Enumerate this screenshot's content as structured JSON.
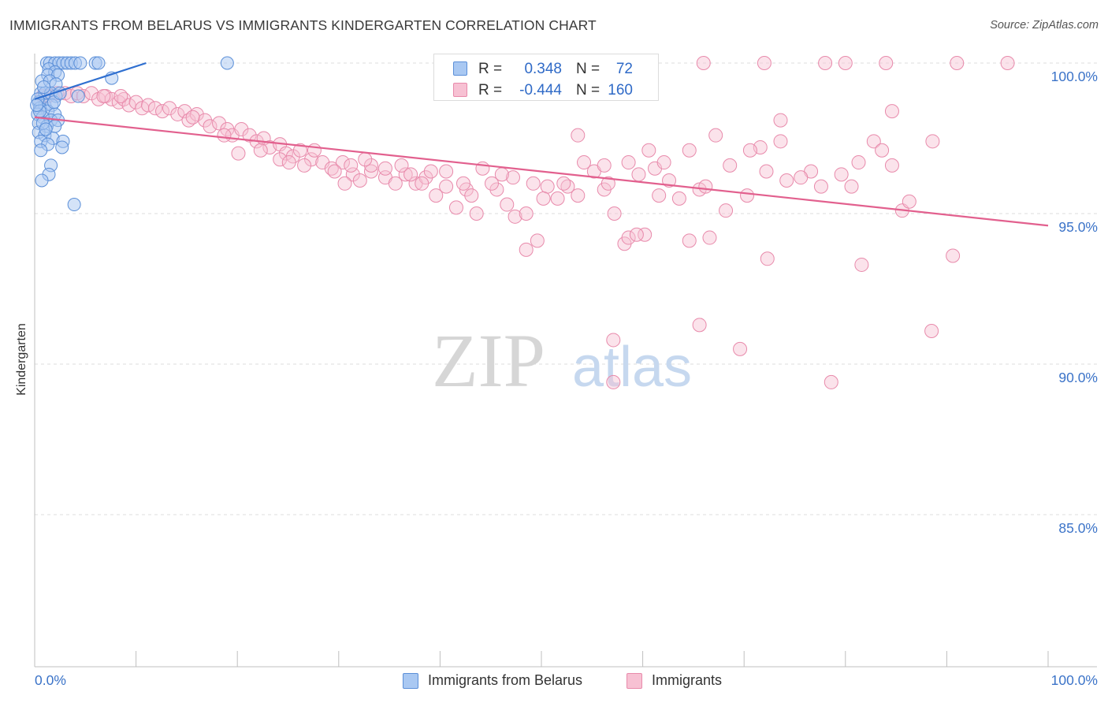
{
  "title": "IMMIGRANTS FROM BELARUS VS IMMIGRANTS KINDERGARTEN CORRELATION CHART",
  "source": "Source: ZipAtlas.com",
  "watermark": {
    "part1": "ZIP",
    "part2": "atlas"
  },
  "legend": {
    "rows": [
      {
        "r_label": "R =",
        "r_value": "0.348",
        "n_label": "N =",
        "n_value": "72"
      },
      {
        "r_label": "R =",
        "r_value": "-0.444",
        "n_label": "N =",
        "n_value": "160"
      }
    ]
  },
  "bottom_legend": [
    "Immigrants from Belarus",
    "Immigrants"
  ],
  "colors": {
    "belarus_fill": "#a9c8f2",
    "belarus_stroke": "#5b8fd8",
    "belarus_line": "#2f6fd0",
    "immigrants_fill": "#f7c1d3",
    "immigrants_stroke": "#e88aab",
    "immigrants_line": "#e2608e",
    "tick_label": "#3b73c8",
    "grid": "#dcdcdc"
  },
  "chart_data": {
    "type": "scatter",
    "title": "IMMIGRANTS FROM BELARUS VS IMMIGRANTS KINDERGARTEN CORRELATION CHART",
    "xlabel": "",
    "ylabel": "Kindergarten",
    "xlim": [
      0,
      100
    ],
    "ylim": [
      80,
      100.5
    ],
    "x_tick_labels": [
      "0.0%",
      "100.0%"
    ],
    "y_ticks": [
      85,
      90,
      95,
      100
    ],
    "y_tick_labels": [
      "85.0%",
      "90.0%",
      "95.0%",
      "100.0%"
    ],
    "grid": "horizontal dashed",
    "series": [
      {
        "name": "Immigrants from Belarus",
        "r": 0.348,
        "n": 72,
        "trend": {
          "x": [
            0,
            11
          ],
          "y": [
            98.8,
            100.0
          ]
        },
        "points": [
          [
            1.2,
            100
          ],
          [
            1.5,
            100
          ],
          [
            2,
            100
          ],
          [
            2.4,
            100
          ],
          [
            2.8,
            100
          ],
          [
            3.2,
            100
          ],
          [
            3.6,
            100
          ],
          [
            4,
            100
          ],
          [
            4.5,
            100
          ],
          [
            6,
            100
          ],
          [
            6.3,
            100
          ],
          [
            19,
            100
          ],
          [
            1.4,
            99.8
          ],
          [
            2,
            99.7
          ],
          [
            1.3,
            99.6
          ],
          [
            2.3,
            99.6
          ],
          [
            7.6,
            99.5
          ],
          [
            0.7,
            99.4
          ],
          [
            1.5,
            99.4
          ],
          [
            2.1,
            99.3
          ],
          [
            0.6,
            99.0
          ],
          [
            1.0,
            99.0
          ],
          [
            1.6,
            99.0
          ],
          [
            2.1,
            98.9
          ],
          [
            4.3,
            98.9
          ],
          [
            0.4,
            98.7
          ],
          [
            1.0,
            98.6
          ],
          [
            1.7,
            98.6
          ],
          [
            0.5,
            98.5
          ],
          [
            1.3,
            98.4
          ],
          [
            2.0,
            98.3
          ],
          [
            0.3,
            98.3
          ],
          [
            0.8,
            98.2
          ],
          [
            1.6,
            98.1
          ],
          [
            2.3,
            98.1
          ],
          [
            0.4,
            98.0
          ],
          [
            1.2,
            97.9
          ],
          [
            2.0,
            97.9
          ],
          [
            0.4,
            97.7
          ],
          [
            1.0,
            97.6
          ],
          [
            1.8,
            97.5
          ],
          [
            0.6,
            97.4
          ],
          [
            2.8,
            97.4
          ],
          [
            1.3,
            97.3
          ],
          [
            2.7,
            97.2
          ],
          [
            0.6,
            97.1
          ],
          [
            1.6,
            96.6
          ],
          [
            1.4,
            96.3
          ],
          [
            0.7,
            96.1
          ],
          [
            3.9,
            95.3
          ],
          [
            0.3,
            98.8
          ],
          [
            0.5,
            98.4
          ],
          [
            0.8,
            98.0
          ],
          [
            1.1,
            97.8
          ],
          [
            0.2,
            98.6
          ],
          [
            0.9,
            99.2
          ],
          [
            1.9,
            98.7
          ],
          [
            2.5,
            99.0
          ]
        ]
      },
      {
        "name": "Immigrants",
        "r": -0.444,
        "n": 160,
        "trend": {
          "x": [
            0,
            100
          ],
          "y": [
            98.2,
            94.6
          ]
        },
        "points": [
          [
            66,
            100
          ],
          [
            72,
            100
          ],
          [
            78,
            100
          ],
          [
            80,
            100
          ],
          [
            84,
            100
          ],
          [
            91,
            100
          ],
          [
            96,
            100
          ],
          [
            0.8,
            98.9
          ],
          [
            1.3,
            98.9
          ],
          [
            2.2,
            99.0
          ],
          [
            3,
            99.0
          ],
          [
            3.6,
            98.9
          ],
          [
            4.2,
            99.0
          ],
          [
            4.8,
            98.9
          ],
          [
            5.6,
            99.0
          ],
          [
            6.3,
            98.8
          ],
          [
            7,
            98.9
          ],
          [
            7.6,
            98.8
          ],
          [
            8.3,
            98.7
          ],
          [
            8.8,
            98.8
          ],
          [
            9.3,
            98.6
          ],
          [
            10,
            98.7
          ],
          [
            10.6,
            98.5
          ],
          [
            11.2,
            98.6
          ],
          [
            11.9,
            98.5
          ],
          [
            12.6,
            98.4
          ],
          [
            13.3,
            98.5
          ],
          [
            14.1,
            98.3
          ],
          [
            14.8,
            98.4
          ],
          [
            15.2,
            98.1
          ],
          [
            16,
            98.3
          ],
          [
            16.8,
            98.1
          ],
          [
            17.3,
            97.9
          ],
          [
            18.2,
            98.0
          ],
          [
            19,
            97.8
          ],
          [
            19.5,
            97.6
          ],
          [
            20.4,
            97.8
          ],
          [
            21.2,
            97.6
          ],
          [
            21.9,
            97.4
          ],
          [
            22.6,
            97.5
          ],
          [
            23.2,
            97.2
          ],
          [
            24.2,
            97.3
          ],
          [
            24.8,
            97.0
          ],
          [
            25.5,
            96.9
          ],
          [
            26.2,
            97.1
          ],
          [
            27.3,
            96.8
          ],
          [
            28.4,
            96.7
          ],
          [
            29.3,
            96.5
          ],
          [
            30.4,
            96.7
          ],
          [
            31.4,
            96.3
          ],
          [
            32.1,
            96.1
          ],
          [
            33.2,
            96.4
          ],
          [
            34.6,
            96.2
          ],
          [
            35.6,
            96.0
          ],
          [
            36.6,
            96.3
          ],
          [
            37.6,
            96.0
          ],
          [
            38.6,
            96.2
          ],
          [
            39.6,
            95.6
          ],
          [
            40.6,
            95.9
          ],
          [
            41.6,
            95.2
          ],
          [
            42.6,
            95.8
          ],
          [
            43.6,
            95.0
          ],
          [
            45.6,
            95.8
          ],
          [
            46.6,
            95.3
          ],
          [
            47.4,
            94.9
          ],
          [
            48.5,
            95.0
          ],
          [
            49.6,
            94.1
          ],
          [
            50.6,
            95.9
          ],
          [
            51.6,
            95.5
          ],
          [
            52.6,
            95.9
          ],
          [
            53.6,
            95.6
          ],
          [
            55.2,
            96.4
          ],
          [
            56.2,
            95.8
          ],
          [
            57.2,
            95.0
          ],
          [
            58.2,
            94.0
          ],
          [
            58.6,
            96.7
          ],
          [
            59.6,
            96.3
          ],
          [
            60.2,
            94.3
          ],
          [
            61.6,
            95.6
          ],
          [
            62.6,
            96.1
          ],
          [
            64.6,
            97.1
          ],
          [
            65.6,
            95.8
          ],
          [
            67.2,
            97.6
          ],
          [
            68.6,
            96.6
          ],
          [
            70.3,
            95.6
          ],
          [
            71.6,
            97.2
          ],
          [
            72.2,
            96.4
          ],
          [
            73.6,
            97.4
          ],
          [
            76.6,
            96.4
          ],
          [
            77.6,
            95.9
          ],
          [
            79.6,
            96.3
          ],
          [
            80.6,
            95.9
          ],
          [
            81.3,
            96.7
          ],
          [
            82.8,
            97.4
          ],
          [
            83.6,
            97.1
          ],
          [
            84.6,
            96.6
          ],
          [
            85.6,
            95.1
          ],
          [
            86.3,
            95.4
          ],
          [
            48.5,
            93.8
          ],
          [
            58.6,
            94.2
          ],
          [
            59.4,
            94.3
          ],
          [
            64.6,
            94.1
          ],
          [
            66.6,
            94.2
          ],
          [
            72.3,
            93.5
          ],
          [
            81.6,
            93.3
          ],
          [
            84.6,
            98.4
          ],
          [
            88.6,
            97.4
          ],
          [
            73.6,
            98.1
          ],
          [
            53.6,
            97.6
          ],
          [
            60.6,
            97.1
          ],
          [
            70.6,
            97.1
          ],
          [
            90.6,
            93.6
          ],
          [
            57.1,
            90.8
          ],
          [
            57.1,
            89.4
          ],
          [
            65.6,
            91.3
          ],
          [
            69.6,
            90.5
          ],
          [
            78.6,
            89.4
          ],
          [
            88.5,
            91.1
          ],
          [
            24.2,
            96.8
          ],
          [
            33.2,
            96.6
          ],
          [
            36.2,
            96.6
          ],
          [
            40.6,
            96.4
          ],
          [
            44.2,
            96.5
          ],
          [
            47.2,
            96.2
          ],
          [
            52.2,
            96.0
          ],
          [
            56.2,
            96.6
          ],
          [
            61.2,
            96.5
          ],
          [
            63.6,
            95.5
          ],
          [
            66.2,
            95.9
          ],
          [
            68.2,
            95.1
          ],
          [
            74.2,
            96.1
          ],
          [
            75.6,
            96.2
          ],
          [
            27.6,
            97.1
          ],
          [
            29.6,
            96.4
          ],
          [
            30.6,
            96.0
          ],
          [
            34.6,
            96.5
          ],
          [
            38.2,
            96.0
          ],
          [
            42.3,
            96.0
          ],
          [
            45.1,
            96.0
          ],
          [
            49.2,
            96.0
          ],
          [
            54.2,
            96.7
          ],
          [
            56.6,
            96.0
          ],
          [
            20.1,
            97.0
          ],
          [
            22.3,
            97.1
          ],
          [
            25.1,
            96.7
          ],
          [
            31.2,
            96.6
          ],
          [
            37.1,
            96.3
          ],
          [
            43.1,
            95.6
          ],
          [
            46.1,
            96.3
          ],
          [
            50.2,
            95.5
          ],
          [
            6.8,
            98.9
          ],
          [
            8.5,
            98.9
          ],
          [
            15.6,
            98.2
          ],
          [
            18.7,
            97.6
          ],
          [
            26.6,
            96.6
          ],
          [
            32.6,
            96.8
          ],
          [
            39.1,
            96.4
          ],
          [
            62.1,
            96.7
          ]
        ]
      }
    ]
  }
}
